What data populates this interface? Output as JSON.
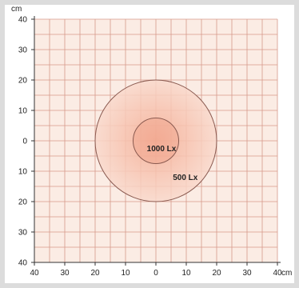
{
  "diagram": {
    "y_unit": "cm",
    "x_unit": "cm",
    "axis_range": [
      -40,
      40
    ],
    "grid_step": 5,
    "y_tick_labels": [
      "40",
      "30",
      "20",
      "10",
      "0",
      "10",
      "20",
      "30",
      "40"
    ],
    "x_tick_labels": [
      "40",
      "30",
      "20",
      "10",
      "0",
      "10",
      "20",
      "30",
      "40"
    ],
    "zones": [
      {
        "label": "500 Lx",
        "radius": 20
      },
      {
        "label": "1000 Lx",
        "radius": 7.5
      }
    ],
    "colors": {
      "grid_fill": "#fbece4",
      "grid_line": "#d79a8a",
      "outer_zone": "#f6cdbd",
      "inner_zone": "#f0a78f",
      "circle_stroke": "#8a5a50"
    }
  }
}
